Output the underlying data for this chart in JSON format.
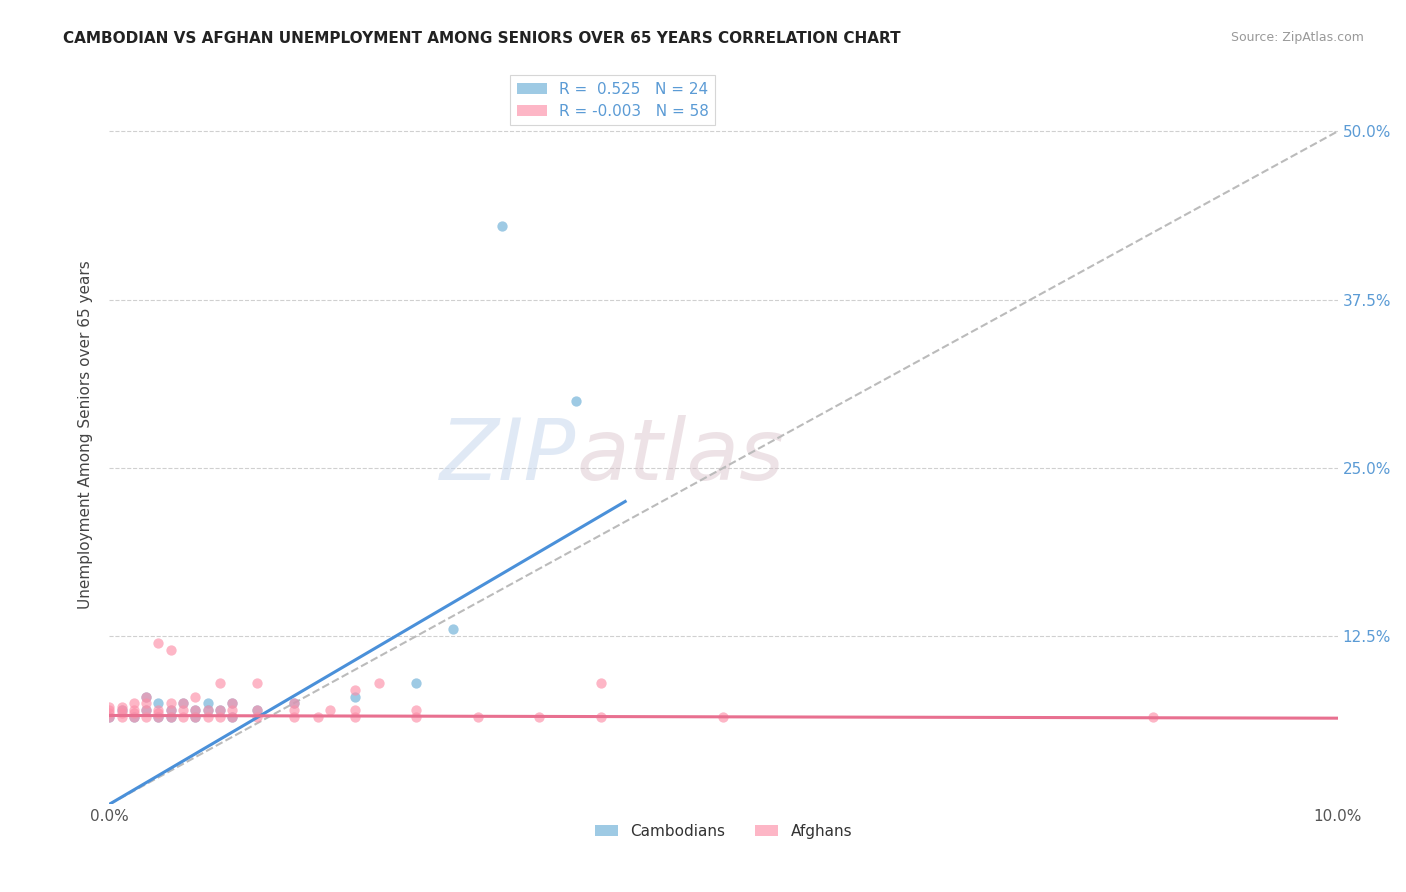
{
  "title": "CAMBODIAN VS AFGHAN UNEMPLOYMENT AMONG SENIORS OVER 65 YEARS CORRELATION CHART",
  "source": "Source: ZipAtlas.com",
  "ylabel": "Unemployment Among Seniors over 65 years",
  "xlim": [
    0.0,
    0.1
  ],
  "ylim": [
    0.0,
    0.55
  ],
  "xticks": [
    0.0,
    0.1
  ],
  "xtick_labels": [
    "0.0%",
    "10.0%"
  ],
  "yticks": [
    0.0,
    0.125,
    0.25,
    0.375,
    0.5
  ],
  "ytick_labels": [
    "",
    "12.5%",
    "25.0%",
    "37.5%",
    "50.0%"
  ],
  "cambodian_color": "#6baed6",
  "afghan_color": "#fc8fa8",
  "cambodian_R": 0.525,
  "cambodian_N": 24,
  "afghan_R": -0.003,
  "afghan_N": 58,
  "watermark_zip": "ZIP",
  "watermark_atlas": "atlas",
  "background_color": "#ffffff",
  "grid_color": "#d0d0d0",
  "trend_line_color_cam": "#4a90d9",
  "trend_line_color_afg": "#e87090",
  "diagonal_color": "#bbbbbb",
  "cambodian_points": [
    [
      0.0,
      0.065
    ],
    [
      0.001,
      0.07
    ],
    [
      0.002,
      0.065
    ],
    [
      0.003,
      0.07
    ],
    [
      0.003,
      0.08
    ],
    [
      0.004,
      0.065
    ],
    [
      0.004,
      0.075
    ],
    [
      0.005,
      0.065
    ],
    [
      0.005,
      0.07
    ],
    [
      0.006,
      0.075
    ],
    [
      0.007,
      0.065
    ],
    [
      0.007,
      0.07
    ],
    [
      0.008,
      0.07
    ],
    [
      0.008,
      0.075
    ],
    [
      0.009,
      0.07
    ],
    [
      0.01,
      0.065
    ],
    [
      0.01,
      0.075
    ],
    [
      0.012,
      0.07
    ],
    [
      0.015,
      0.075
    ],
    [
      0.02,
      0.08
    ],
    [
      0.025,
      0.09
    ],
    [
      0.028,
      0.13
    ],
    [
      0.032,
      0.43
    ],
    [
      0.038,
      0.3
    ]
  ],
  "afghan_points": [
    [
      0.0,
      0.065
    ],
    [
      0.0,
      0.068
    ],
    [
      0.0,
      0.07
    ],
    [
      0.0,
      0.072
    ],
    [
      0.001,
      0.065
    ],
    [
      0.001,
      0.068
    ],
    [
      0.001,
      0.07
    ],
    [
      0.001,
      0.072
    ],
    [
      0.002,
      0.065
    ],
    [
      0.002,
      0.068
    ],
    [
      0.002,
      0.07
    ],
    [
      0.002,
      0.075
    ],
    [
      0.003,
      0.065
    ],
    [
      0.003,
      0.07
    ],
    [
      0.003,
      0.075
    ],
    [
      0.003,
      0.08
    ],
    [
      0.004,
      0.065
    ],
    [
      0.004,
      0.068
    ],
    [
      0.004,
      0.07
    ],
    [
      0.004,
      0.12
    ],
    [
      0.005,
      0.065
    ],
    [
      0.005,
      0.07
    ],
    [
      0.005,
      0.075
    ],
    [
      0.005,
      0.115
    ],
    [
      0.006,
      0.065
    ],
    [
      0.006,
      0.07
    ],
    [
      0.006,
      0.075
    ],
    [
      0.007,
      0.065
    ],
    [
      0.007,
      0.07
    ],
    [
      0.007,
      0.08
    ],
    [
      0.008,
      0.065
    ],
    [
      0.008,
      0.07
    ],
    [
      0.009,
      0.065
    ],
    [
      0.009,
      0.07
    ],
    [
      0.009,
      0.09
    ],
    [
      0.01,
      0.065
    ],
    [
      0.01,
      0.07
    ],
    [
      0.01,
      0.075
    ],
    [
      0.012,
      0.065
    ],
    [
      0.012,
      0.07
    ],
    [
      0.012,
      0.09
    ],
    [
      0.015,
      0.065
    ],
    [
      0.015,
      0.07
    ],
    [
      0.015,
      0.075
    ],
    [
      0.017,
      0.065
    ],
    [
      0.018,
      0.07
    ],
    [
      0.02,
      0.065
    ],
    [
      0.02,
      0.07
    ],
    [
      0.02,
      0.085
    ],
    [
      0.022,
      0.09
    ],
    [
      0.025,
      0.065
    ],
    [
      0.025,
      0.07
    ],
    [
      0.03,
      0.065
    ],
    [
      0.035,
      0.065
    ],
    [
      0.04,
      0.065
    ],
    [
      0.04,
      0.09
    ],
    [
      0.05,
      0.065
    ],
    [
      0.085,
      0.065
    ]
  ],
  "cam_trendline_x": [
    0.0,
    0.042
  ],
  "cam_trendline_y": [
    0.0,
    0.225
  ],
  "afg_trendline_x": [
    0.0,
    0.1
  ],
  "afg_trendline_y": [
    0.066,
    0.064
  ]
}
